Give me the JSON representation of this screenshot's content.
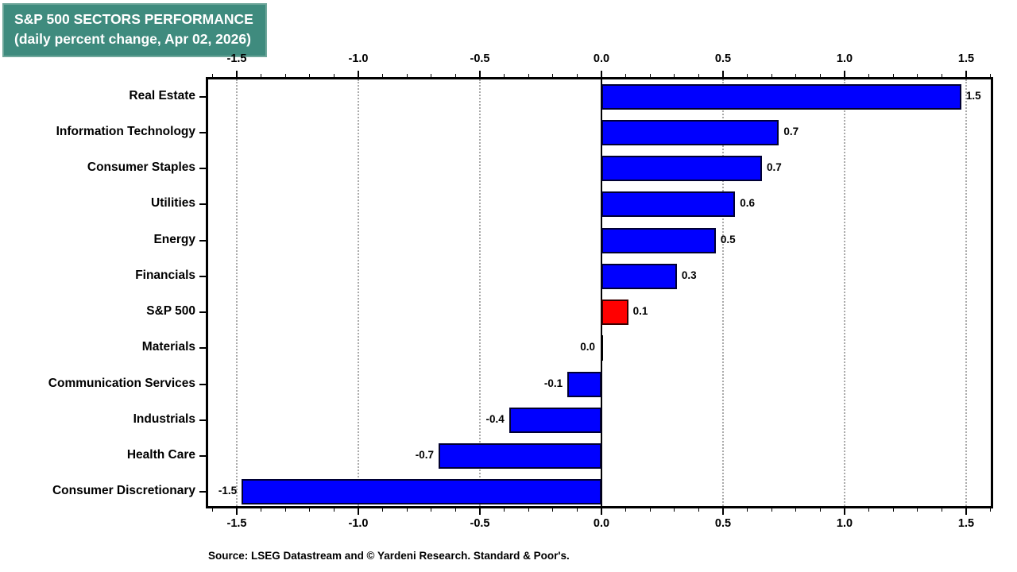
{
  "title": {
    "line1": "S&P 500 SECTORS PERFORMANCE",
    "line2": "(daily percent change, Apr 02, 2026)",
    "background_color": "#3F8B7E",
    "text_color": "#FFFFFF"
  },
  "source_note": "Source: LSEG Datastream and © Yardeni Research. Standard & Poor's.",
  "chart_data": {
    "type": "bar",
    "orientation": "horizontal",
    "title": "S&P 500 SECTORS PERFORMANCE (daily percent change, Apr 02, 2026)",
    "categories": [
      "Real Estate",
      "Information Technology",
      "Consumer Staples",
      "Utilities",
      "Energy",
      "Financials",
      "S&P 500",
      "Materials",
      "Communication Services",
      "Industrials",
      "Health Care",
      "Consumer Discretionary"
    ],
    "values": [
      1.5,
      0.7,
      0.7,
      0.6,
      0.5,
      0.3,
      0.1,
      0.0,
      -0.1,
      -0.4,
      -0.7,
      -1.5
    ],
    "value_labels": [
      "1.5",
      "0.7",
      "0.7",
      "0.6",
      "0.5",
      "0.3",
      "0.1",
      "0.0",
      "-0.1",
      "-0.4",
      "-0.7",
      "-1.5"
    ],
    "bar_lengths": [
      1.48,
      0.73,
      0.66,
      0.55,
      0.47,
      0.31,
      0.11,
      0.0,
      -0.14,
      -0.38,
      -0.67,
      -1.48
    ],
    "highlight_index": 6,
    "bar_color": "#0000FF",
    "bar_border_color": "#000033",
    "highlight_color": "#FF0000",
    "highlight_border_color": "#3A0000",
    "xlim": [
      -1.62,
      1.61
    ],
    "x_major_ticks": [
      -1.5,
      -1.0,
      -0.5,
      0.0,
      0.5,
      1.0,
      1.5
    ],
    "x_tick_labels": [
      "-1.5",
      "-1.0",
      "-0.5",
      "0.0",
      "0.5",
      "1.0",
      "1.5"
    ],
    "x_minor_tick_step": 0.1,
    "gridline_values": [
      -1.5,
      -1.0,
      -0.5,
      0.5,
      1.0,
      1.5
    ],
    "grid_color": "#AAAAAA",
    "zero_line": true,
    "legend": "none",
    "xlabel": "",
    "ylabel": ""
  }
}
